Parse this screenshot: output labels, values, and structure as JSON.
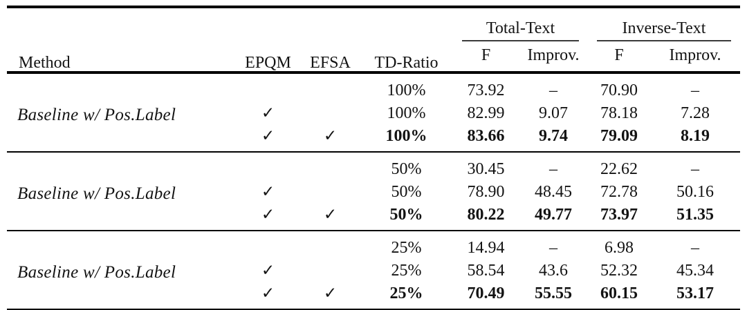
{
  "table": {
    "headers": {
      "method": "Method",
      "epqm": "EPQM",
      "efsa": "EFSA",
      "td_ratio": "TD-Ratio",
      "total_text": "Total-Text",
      "inverse_text": "Inverse-Text",
      "f": "F",
      "improv": "Improv."
    },
    "groups": [
      {
        "method": "Baseline w/ Pos.Label",
        "rows": [
          {
            "epqm": "",
            "efsa": "",
            "td": "100%",
            "ttf": "73.92",
            "tti": "–",
            "itf": "70.90",
            "iti": "–"
          },
          {
            "epqm": "✓",
            "efsa": "",
            "td": "100%",
            "ttf": "82.99",
            "tti": "9.07",
            "itf": "78.18",
            "iti": "7.28"
          },
          {
            "epqm": "✓",
            "efsa": "✓",
            "td": "100%",
            "ttf": "83.66",
            "tti": "9.74",
            "itf": "79.09",
            "iti": "8.19"
          }
        ]
      },
      {
        "method": "Baseline w/ Pos.Label",
        "rows": [
          {
            "epqm": "",
            "efsa": "",
            "td": "50%",
            "ttf": "30.45",
            "tti": "–",
            "itf": "22.62",
            "iti": "–"
          },
          {
            "epqm": "✓",
            "efsa": "",
            "td": "50%",
            "ttf": "78.90",
            "tti": "48.45",
            "itf": "72.78",
            "iti": "50.16"
          },
          {
            "epqm": "✓",
            "efsa": "✓",
            "td": "50%",
            "ttf": "80.22",
            "tti": "49.77",
            "itf": "73.97",
            "iti": "51.35"
          }
        ]
      },
      {
        "method": "Baseline w/ Pos.Label",
        "rows": [
          {
            "epqm": "",
            "efsa": "",
            "td": "25%",
            "ttf": "14.94",
            "tti": "–",
            "itf": "6.98",
            "iti": "–"
          },
          {
            "epqm": "✓",
            "efsa": "",
            "td": "25%",
            "ttf": "58.54",
            "tti": "43.6",
            "itf": "52.32",
            "iti": "45.34"
          },
          {
            "epqm": "✓",
            "efsa": "✓",
            "td": "25%",
            "ttf": "70.49",
            "tti": "55.55",
            "itf": "60.15",
            "iti": "53.17"
          }
        ]
      }
    ]
  }
}
